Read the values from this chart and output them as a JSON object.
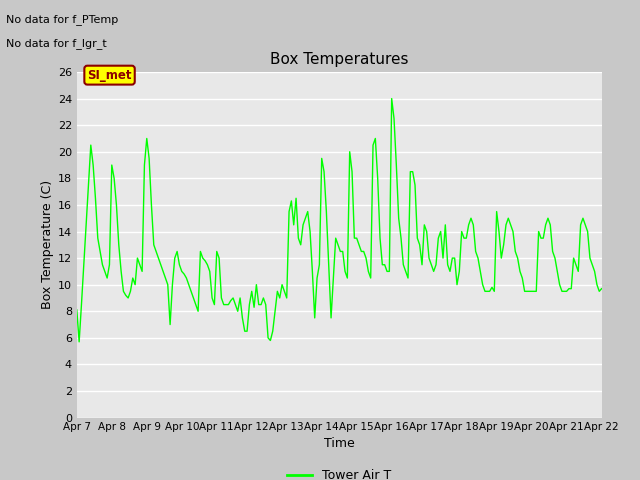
{
  "title": "Box Temperatures",
  "xlabel": "Time",
  "ylabel": "Box Temperature (C)",
  "bg_color": "#c8c8c8",
  "plot_bg_color": "#e8e8e8",
  "line_color": "#00ff00",
  "ylim": [
    0,
    26
  ],
  "yticks": [
    0,
    2,
    4,
    6,
    8,
    10,
    12,
    14,
    16,
    18,
    20,
    22,
    24,
    26
  ],
  "xtick_labels": [
    "Apr 7",
    "Apr 8",
    "Apr 9",
    "Apr 10",
    "Apr 11",
    "Apr 12",
    "Apr 13",
    "Apr 14",
    "Apr 15",
    "Apr 16",
    "Apr 17",
    "Apr 18",
    "Apr 19",
    "Apr 20",
    "Apr 21",
    "Apr 22"
  ],
  "no_data_text_1": "No data for f_PTemp",
  "no_data_text_2": "No data for f_lgr_t",
  "legend_label": "Tower Air T",
  "annotation_text": "SI_met",
  "annotation_bg": "#ffff00",
  "annotation_edge": "#8b0000",
  "annotation_text_color": "#8b0000",
  "x_values": [
    0.0,
    0.067,
    0.133,
    0.2,
    0.267,
    0.333,
    0.4,
    0.467,
    0.533,
    0.6,
    0.667,
    0.733,
    0.8,
    0.867,
    0.933,
    1.0,
    1.067,
    1.133,
    1.2,
    1.267,
    1.333,
    1.4,
    1.467,
    1.533,
    1.6,
    1.667,
    1.733,
    1.8,
    1.867,
    1.933,
    2.0,
    2.067,
    2.133,
    2.2,
    2.267,
    2.333,
    2.4,
    2.467,
    2.533,
    2.6,
    2.667,
    2.733,
    2.8,
    2.867,
    2.933,
    3.0,
    3.067,
    3.133,
    3.2,
    3.267,
    3.333,
    3.4,
    3.467,
    3.533,
    3.6,
    3.667,
    3.733,
    3.8,
    3.867,
    3.933,
    4.0,
    4.067,
    4.133,
    4.2,
    4.267,
    4.333,
    4.4,
    4.467,
    4.533,
    4.6,
    4.667,
    4.733,
    4.8,
    4.867,
    4.933,
    5.0,
    5.067,
    5.133,
    5.2,
    5.267,
    5.333,
    5.4,
    5.467,
    5.533,
    5.6,
    5.667,
    5.733,
    5.8,
    5.867,
    5.933,
    6.0,
    6.067,
    6.133,
    6.2,
    6.267,
    6.333,
    6.4,
    6.467,
    6.533,
    6.6,
    6.667,
    6.733,
    6.8,
    6.867,
    6.933,
    7.0,
    7.067,
    7.133,
    7.2,
    7.267,
    7.333,
    7.4,
    7.467,
    7.533,
    7.6,
    7.667,
    7.733,
    7.8,
    7.867,
    7.933,
    8.0,
    8.067,
    8.133,
    8.2,
    8.267,
    8.333,
    8.4,
    8.467,
    8.533,
    8.6,
    8.667,
    8.733,
    8.8,
    8.867,
    8.933,
    9.0,
    9.067,
    9.133,
    9.2,
    9.267,
    9.333,
    9.4,
    9.467,
    9.533,
    9.6,
    9.667,
    9.733,
    9.8,
    9.867,
    9.933,
    10.0,
    10.067,
    10.133,
    10.2,
    10.267,
    10.333,
    10.4,
    10.467,
    10.533,
    10.6,
    10.667,
    10.733,
    10.8,
    10.867,
    10.933,
    11.0,
    11.067,
    11.133,
    11.2,
    11.267,
    11.333,
    11.4,
    11.467,
    11.533,
    11.6,
    11.667,
    11.733,
    11.8,
    11.867,
    11.933,
    12.0,
    12.067,
    12.133,
    12.2,
    12.267,
    12.333,
    12.4,
    12.467,
    12.533,
    12.6,
    12.667,
    12.733,
    12.8,
    12.867,
    12.933,
    13.0,
    13.067,
    13.133,
    13.2,
    13.267,
    13.333,
    13.4,
    13.467,
    13.533,
    13.6,
    13.667,
    13.733,
    13.8,
    13.867,
    13.933,
    14.0,
    14.067,
    14.133,
    14.2,
    14.267,
    14.333,
    14.4,
    14.467,
    14.533,
    14.6,
    14.667,
    14.733,
    14.8,
    14.867,
    14.933,
    15.0
  ],
  "y_values": [
    8.1,
    5.7,
    8.5,
    11.5,
    14.5,
    17.5,
    20.5,
    19.0,
    16.5,
    13.5,
    12.5,
    11.5,
    11.0,
    10.5,
    11.5,
    19.0,
    18.0,
    16.0,
    13.0,
    11.0,
    9.5,
    9.2,
    9.0,
    9.5,
    10.5,
    10.0,
    12.0,
    11.5,
    11.0,
    19.0,
    21.0,
    19.5,
    16.0,
    13.0,
    12.5,
    12.0,
    11.5,
    11.0,
    10.5,
    10.0,
    7.0,
    10.0,
    12.0,
    12.5,
    11.5,
    11.0,
    10.8,
    10.5,
    10.0,
    9.5,
    9.0,
    8.5,
    8.0,
    12.5,
    12.0,
    11.8,
    11.5,
    11.0,
    9.0,
    8.5,
    12.5,
    12.0,
    9.0,
    8.5,
    8.5,
    8.5,
    8.8,
    9.0,
    8.5,
    8.0,
    9.0,
    7.5,
    6.5,
    6.5,
    8.5,
    9.5,
    8.3,
    10.0,
    8.5,
    8.5,
    9.0,
    8.5,
    6.0,
    5.8,
    6.5,
    8.0,
    9.5,
    9.0,
    10.0,
    9.5,
    9.0,
    15.5,
    16.3,
    14.5,
    16.5,
    13.5,
    13.0,
    14.5,
    15.0,
    15.5,
    14.0,
    11.0,
    7.5,
    10.5,
    11.5,
    19.5,
    18.5,
    15.5,
    11.5,
    7.5,
    10.5,
    13.5,
    13.0,
    12.5,
    12.5,
    11.0,
    10.5,
    20.0,
    18.5,
    13.5,
    13.5,
    13.0,
    12.5,
    12.5,
    12.0,
    11.0,
    10.5,
    20.5,
    21.0,
    18.0,
    13.5,
    11.5,
    11.5,
    11.0,
    11.0,
    24.0,
    22.5,
    19.0,
    15.0,
    13.5,
    11.5,
    11.0,
    10.5,
    18.5,
    18.5,
    17.5,
    13.5,
    13.0,
    11.5,
    14.5,
    14.0,
    12.0,
    11.5,
    11.0,
    11.5,
    13.5,
    14.0,
    12.0,
    14.5,
    11.5,
    11.0,
    12.0,
    12.0,
    10.0,
    11.0,
    14.0,
    13.5,
    13.5,
    14.5,
    15.0,
    14.5,
    12.5,
    12.0,
    11.0,
    10.0,
    9.5,
    9.5,
    9.5,
    9.8,
    9.5,
    15.5,
    14.0,
    12.0,
    13.0,
    14.5,
    15.0,
    14.5,
    14.0,
    12.5,
    12.0,
    11.0,
    10.5,
    9.5,
    9.5,
    9.5,
    9.5,
    9.5,
    9.5,
    14.0,
    13.5,
    13.5,
    14.5,
    15.0,
    14.5,
    12.5,
    12.0,
    11.0,
    10.0,
    9.5,
    9.5,
    9.5,
    9.7,
    9.7,
    12.0,
    11.5,
    11.0,
    14.5,
    15.0,
    14.5,
    14.0,
    12.0,
    11.5,
    11.0,
    10.0,
    9.5,
    9.7
  ]
}
